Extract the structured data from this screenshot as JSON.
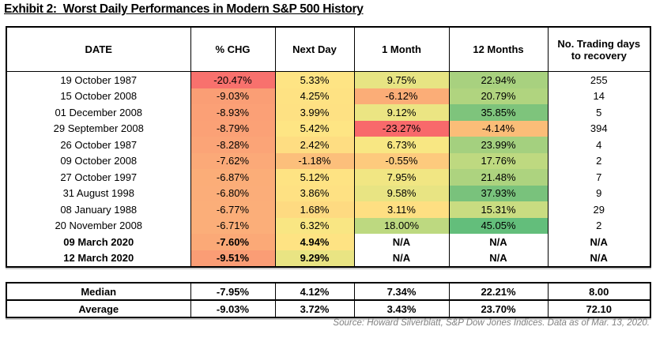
{
  "title": "Exhibit 2:  Worst Daily Performances in Modern S&P 500 History",
  "source_note": "Source: Howard Silverblatt, S&P Dow Jones Indices. Data as of Mar. 13, 2020.",
  "colors": {
    "heat_red": "#F8696B",
    "heat_yellow": "#FFEB84",
    "heat_green": "#63BE7B",
    "table_border": "#000000",
    "source_text": "#808080"
  },
  "chart_data": {
    "type": "table",
    "title": "Exhibit 2: Worst Daily Performances in Modern S&P 500 History",
    "columns": [
      "DATE",
      "% CHG",
      "Next Day",
      "1 Month",
      "12 Months",
      "No. Trading days to recovery"
    ],
    "rows": [
      [
        "19 October 1987",
        "-20.47%",
        "5.33%",
        "9.75%",
        "22.94%",
        "255"
      ],
      [
        "15 October 2008",
        "-9.03%",
        "4.25%",
        "-6.12%",
        "20.79%",
        "14"
      ],
      [
        "01 December 2008",
        "-8.93%",
        "3.99%",
        "9.12%",
        "35.85%",
        "5"
      ],
      [
        "29 September 2008",
        "-8.79%",
        "5.42%",
        "-23.27%",
        "-4.14%",
        "394"
      ],
      [
        "26 October 1987",
        "-8.28%",
        "2.42%",
        "6.73%",
        "23.99%",
        "4"
      ],
      [
        "09 October 2008",
        "-7.62%",
        "-1.18%",
        "-0.55%",
        "17.76%",
        "2"
      ],
      [
        "27 October 1997",
        "-6.87%",
        "5.12%",
        "7.95%",
        "21.48%",
        "7"
      ],
      [
        "31 August 1998",
        "-6.80%",
        "3.86%",
        "9.58%",
        "37.93%",
        "9"
      ],
      [
        "08 January 1988",
        "-6.77%",
        "1.68%",
        "3.11%",
        "15.31%",
        "29"
      ],
      [
        "20 November 2008",
        "-6.71%",
        "6.32%",
        "18.00%",
        "45.05%",
        "2"
      ],
      [
        "09 March 2020",
        "-7.60%",
        "4.94%",
        "N/A",
        "N/A",
        "N/A"
      ],
      [
        "12 March 2020",
        "-9.51%",
        "9.29%",
        "N/A",
        "N/A",
        "N/A"
      ]
    ],
    "bold_rows": [
      10,
      11
    ],
    "cell_colors": [
      [
        "",
        "#F8716D",
        "#FEE484",
        "#E7E483",
        "#A8D17F",
        ""
      ],
      [
        "",
        "#FA9E75",
        "#FEE283",
        "#FBAD77",
        "#B0D47F",
        ""
      ],
      [
        "",
        "#FBA076",
        "#FEE183",
        "#EBE583",
        "#7EC47C",
        ""
      ],
      [
        "",
        "#FBA176",
        "#FEE584",
        "#F8696B",
        "#FBBD78",
        ""
      ],
      [
        "",
        "#FBA477",
        "#FEDD82",
        "#F8E783",
        "#A4D07F",
        ""
      ],
      [
        "",
        "#FBA978",
        "#FCBF7B",
        "#FDCA7D",
        "#BED980",
        ""
      ],
      [
        "",
        "#FBAD78",
        "#FEE383",
        "#F1E683",
        "#ADD37F",
        ""
      ],
      [
        "",
        "#FBAD79",
        "#FEE183",
        "#E8E483",
        "#79C27C",
        ""
      ],
      [
        "",
        "#FBAE79",
        "#FEDA81",
        "#FEDF82",
        "#C9DC81",
        ""
      ],
      [
        "",
        "#FBAE79",
        "#F9E683",
        "#BDD980",
        "#63BE7B",
        ""
      ],
      [
        "",
        "#FBA977",
        "#FEE383",
        "#FFFFFF",
        "#FFFFFF",
        ""
      ],
      [
        "",
        "#FA9D75",
        "#E9E483",
        "#FFFFFF",
        "#FFFFFF",
        ""
      ]
    ],
    "summary_rows": [
      [
        "Median",
        "-7.95%",
        "4.12%",
        "7.34%",
        "22.21%",
        "8.00"
      ],
      [
        "Average",
        "-9.03%",
        "3.72%",
        "3.43%",
        "23.70%",
        "72.10"
      ]
    ]
  }
}
